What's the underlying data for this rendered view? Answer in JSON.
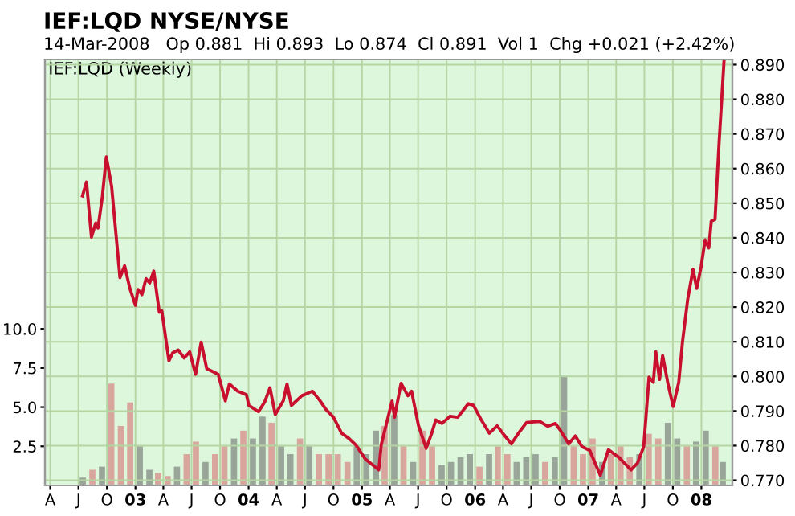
{
  "chart_data": {
    "type": "line",
    "title": "IEF:LQD NYSE/NYSE",
    "subtitle": "14-Mar-2008   Op 0.881  Hi 0.893  Lo 0.874  Cl 0.891  Vol 1  Chg +0.021 (+2.42%)",
    "annotations": [
      "IEF:LQD (Weekly)"
    ],
    "xlim": [
      "2002-03-15",
      "2008-04-10"
    ],
    "xticks": [
      {
        "value": "2002-04-01",
        "label": "A"
      },
      {
        "value": "2002-07-01",
        "label": "J"
      },
      {
        "value": "2002-10-01",
        "label": "O"
      },
      {
        "value": "2003-01-01",
        "label": "03"
      },
      {
        "value": "2003-04-01",
        "label": "A"
      },
      {
        "value": "2003-07-01",
        "label": "J"
      },
      {
        "value": "2003-10-01",
        "label": "O"
      },
      {
        "value": "2004-01-01",
        "label": "04"
      },
      {
        "value": "2004-04-01",
        "label": "A"
      },
      {
        "value": "2004-07-01",
        "label": "J"
      },
      {
        "value": "2004-10-01",
        "label": "O"
      },
      {
        "value": "2005-01-01",
        "label": "05"
      },
      {
        "value": "2005-04-01",
        "label": "A"
      },
      {
        "value": "2005-07-01",
        "label": "J"
      },
      {
        "value": "2005-10-01",
        "label": "O"
      },
      {
        "value": "2006-01-01",
        "label": "06"
      },
      {
        "value": "2006-04-01",
        "label": "A"
      },
      {
        "value": "2006-07-01",
        "label": "J"
      },
      {
        "value": "2006-10-01",
        "label": "O"
      },
      {
        "value": "2007-01-01",
        "label": "07"
      },
      {
        "value": "2007-04-01",
        "label": "A"
      },
      {
        "value": "2007-07-01",
        "label": "J"
      },
      {
        "value": "2007-10-01",
        "label": "O"
      },
      {
        "value": "2008-01-01",
        "label": "08"
      }
    ],
    "ylim": [
      0,
      27.2
    ],
    "yticks": [
      {
        "value": 2.5,
        "label": "2.5"
      },
      {
        "value": 5.0,
        "label": "5.0"
      },
      {
        "value": 7.5,
        "label": "7.5"
      },
      {
        "value": 10.0,
        "label": "10.0"
      }
    ],
    "y2lim": [
      0.7685,
      0.8915
    ],
    "y2ticks": [
      {
        "value": 0.77,
        "label": "0.770"
      },
      {
        "value": 0.78,
        "label": "0.780"
      },
      {
        "value": 0.79,
        "label": "0.790"
      },
      {
        "value": 0.8,
        "label": "0.800"
      },
      {
        "value": 0.81,
        "label": "0.810"
      },
      {
        "value": 0.82,
        "label": "0.820"
      },
      {
        "value": 0.83,
        "label": "0.830"
      },
      {
        "value": 0.84,
        "label": "0.840"
      },
      {
        "value": 0.85,
        "label": "0.850"
      },
      {
        "value": 0.86,
        "label": "0.860"
      },
      {
        "value": 0.87,
        "label": "0.870"
      },
      {
        "value": 0.88,
        "label": "0.880"
      },
      {
        "value": 0.89,
        "label": "0.890"
      }
    ],
    "grid": true,
    "legend": false,
    "series": [
      {
        "type": "bar",
        "x": [
          "2002-07-15",
          "2002-08-15",
          "2002-09-15",
          "2002-10-15",
          "2002-11-15",
          "2002-12-15",
          "2003-01-15",
          "2003-02-15",
          "2003-03-15",
          "2003-04-15",
          "2003-05-15",
          "2003-06-15",
          "2003-07-15",
          "2003-08-15",
          "2003-09-15",
          "2003-10-15",
          "2003-11-15",
          "2003-12-15",
          "2004-01-15",
          "2004-02-15",
          "2004-03-15",
          "2004-04-15",
          "2004-05-15",
          "2004-06-15",
          "2004-07-15",
          "2004-08-15",
          "2004-09-15",
          "2004-10-15",
          "2004-11-15",
          "2004-12-15",
          "2005-01-15",
          "2005-02-15",
          "2005-03-15",
          "2005-04-15",
          "2005-05-15",
          "2005-06-15",
          "2005-07-15",
          "2005-08-15",
          "2005-09-15",
          "2005-10-15",
          "2005-11-15",
          "2005-12-15",
          "2006-01-15",
          "2006-02-15",
          "2006-03-15",
          "2006-04-15",
          "2006-05-15",
          "2006-06-15",
          "2006-07-15",
          "2006-08-15",
          "2006-09-15",
          "2006-10-15",
          "2006-11-15",
          "2006-12-15",
          "2007-01-15",
          "2007-02-15",
          "2007-03-15",
          "2007-04-15",
          "2007-05-15",
          "2007-06-15",
          "2007-07-15",
          "2007-08-15",
          "2007-09-15",
          "2007-10-15",
          "2007-11-15",
          "2007-12-15",
          "2008-01-15",
          "2008-02-15",
          "2008-03-10"
        ],
        "values": [
          0.5,
          1.0,
          1.2,
          6.5,
          3.8,
          5.3,
          2.5,
          1.0,
          0.8,
          0.6,
          1.2,
          2.0,
          2.8,
          1.5,
          2.0,
          2.5,
          3.0,
          3.5,
          3.0,
          4.4,
          4.0,
          2.5,
          2.0,
          3.0,
          2.5,
          2.0,
          2.0,
          2.0,
          1.5,
          2.5,
          2.0,
          3.5,
          3.8,
          4.5,
          2.5,
          1.5,
          3.5,
          2.5,
          1.3,
          1.5,
          1.8,
          2.0,
          1.2,
          2.0,
          2.5,
          2.0,
          1.5,
          1.8,
          2.0,
          1.5,
          1.8,
          7.0,
          2.5,
          2.0,
          3.0,
          1.5,
          2.0,
          2.5,
          1.8,
          2.0,
          3.3,
          3.0,
          4.0,
          3.0,
          2.5,
          2.8,
          3.5,
          2.5,
          1.5
        ],
        "colors": [
          "#9aa59a",
          "#d9a69e",
          "#9aa59a",
          "#d9a69e",
          "#d9a69e",
          "#d9a69e",
          "#9aa59a",
          "#9aa59a",
          "#d9a69e",
          "#d9a69e",
          "#9aa59a",
          "#d9a69e",
          "#d9a69e",
          "#9aa59a",
          "#d9a69e",
          "#d9a69e",
          "#9aa59a",
          "#d9a69e",
          "#9aa59a",
          "#9aa59a",
          "#d9a69e",
          "#9aa59a",
          "#9aa59a",
          "#d9a69e",
          "#9aa59a",
          "#d9a69e",
          "#d9a69e",
          "#d9a69e",
          "#d9a69e",
          "#9aa59a",
          "#9aa59a",
          "#9aa59a",
          "#d9a69e",
          "#9aa59a",
          "#d9a69e",
          "#9aa59a",
          "#d9a69e",
          "#d9a69e",
          "#9aa59a",
          "#9aa59a",
          "#9aa59a",
          "#9aa59a",
          "#d9a69e",
          "#9aa59a",
          "#d9a69e",
          "#d9a69e",
          "#9aa59a",
          "#9aa59a",
          "#9aa59a",
          "#d9a69e",
          "#9aa59a",
          "#9aa59a",
          "#d9a69e",
          "#d9a69e",
          "#d9a69e",
          "#9aa59a",
          "#d9a69e",
          "#d9a69e",
          "#d9a69e",
          "#9aa59a",
          "#d9a69e",
          "#d9a69e",
          "#9aa59a",
          "#9aa59a",
          "#d9a69e",
          "#9aa59a",
          "#9aa59a",
          "#d9a69e",
          "#9aa59a"
        ]
      },
      {
        "axis": "y2",
        "color": "#c8102e",
        "line_style": "solid",
        "marker": "none",
        "x": [
          "2002-07-14",
          "2002-07-27",
          "2002-08-12",
          "2002-08-26",
          "2002-09-02",
          "2002-09-16",
          "2002-09-29",
          "2002-10-16",
          "2002-11-12",
          "2002-11-27",
          "2002-12-14",
          "2003-01-01",
          "2003-01-09",
          "2003-01-22",
          "2003-02-04",
          "2003-02-16",
          "2003-03-01",
          "2003-03-19",
          "2003-03-27",
          "2003-04-19",
          "2003-05-01",
          "2003-05-19",
          "2003-06-07",
          "2003-06-25",
          "2003-07-14",
          "2003-08-01",
          "2003-08-19",
          "2003-09-07",
          "2003-09-25",
          "2003-10-18",
          "2003-10-31",
          "2003-11-27",
          "2003-12-25",
          "2004-01-02",
          "2004-02-02",
          "2004-02-22",
          "2004-03-10",
          "2004-03-27",
          "2004-04-22",
          "2004-05-04",
          "2004-05-18",
          "2004-06-21",
          "2004-07-25",
          "2004-08-19",
          "2004-09-06",
          "2004-10-01",
          "2004-10-27",
          "2004-11-21",
          "2004-12-12",
          "2005-01-12",
          "2005-02-24",
          "2005-03-04",
          "2005-04-08",
          "2005-04-16",
          "2005-05-07",
          "2005-05-29",
          "2005-06-10",
          "2005-07-02",
          "2005-07-27",
          "2005-08-14",
          "2005-08-27",
          "2005-09-16",
          "2005-10-12",
          "2005-11-06",
          "2005-12-10",
          "2005-12-27",
          "2006-01-21",
          "2006-02-16",
          "2006-03-13",
          "2006-03-31",
          "2006-04-28",
          "2006-05-21",
          "2006-06-16",
          "2006-07-28",
          "2006-08-23",
          "2006-09-17",
          "2006-10-04",
          "2006-10-30",
          "2006-11-20",
          "2006-12-12",
          "2007-01-06",
          "2007-02-09",
          "2007-03-07",
          "2007-04-10",
          "2007-05-19",
          "2007-06-09",
          "2007-06-29",
          "2007-07-16",
          "2007-07-30",
          "2007-08-07",
          "2007-08-19",
          "2007-08-29",
          "2007-09-16",
          "2007-10-02",
          "2007-10-20",
          "2007-11-01",
          "2007-11-18",
          "2007-12-05",
          "2007-12-17",
          "2007-12-31",
          "2008-01-13",
          "2008-01-25",
          "2008-02-02",
          "2008-02-14",
          "2008-02-27",
          "2008-03-14"
        ],
        "values": [
          0.8521,
          0.8561,
          0.8402,
          0.8443,
          0.8428,
          0.8518,
          0.8634,
          0.8549,
          0.8285,
          0.8319,
          0.8254,
          0.8205,
          0.8251,
          0.8236,
          0.8282,
          0.827,
          0.8304,
          0.8185,
          0.8189,
          0.8045,
          0.8068,
          0.8076,
          0.8053,
          0.8071,
          0.8006,
          0.8099,
          0.8022,
          0.8014,
          0.8006,
          0.7929,
          0.7978,
          0.7957,
          0.7947,
          0.7916,
          0.7898,
          0.7926,
          0.7967,
          0.789,
          0.7929,
          0.7978,
          0.7916,
          0.7944,
          0.7957,
          0.7929,
          0.7905,
          0.7882,
          0.7836,
          0.782,
          0.7802,
          0.7761,
          0.773,
          0.7802,
          0.7929,
          0.7882,
          0.798,
          0.7944,
          0.7957,
          0.7859,
          0.7792,
          0.7836,
          0.7874,
          0.7864,
          0.7885,
          0.7882,
          0.7921,
          0.7916,
          0.7874,
          0.7836,
          0.7857,
          0.7836,
          0.7805,
          0.7836,
          0.7867,
          0.787,
          0.7856,
          0.7864,
          0.7843,
          0.7805,
          0.7828,
          0.7797,
          0.7786,
          0.7714,
          0.7788,
          0.7766,
          0.773,
          0.775,
          0.7797,
          0.7998,
          0.7983,
          0.8071,
          0.7991,
          0.806,
          0.7975,
          0.7913,
          0.7983,
          0.8099,
          0.8223,
          0.8309,
          0.8254,
          0.8316,
          0.8394,
          0.8371,
          0.8448,
          0.8453,
          0.8673,
          0.891
        ]
      }
    ]
  }
}
